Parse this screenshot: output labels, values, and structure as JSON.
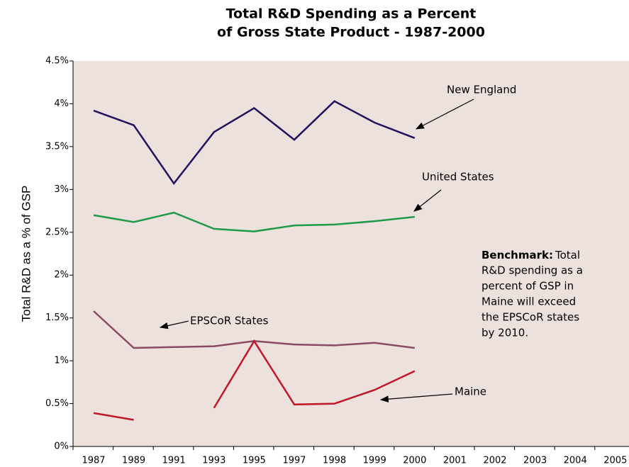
{
  "chart_data": {
    "type": "line",
    "title": [
      "Total R&D Spending as a Percent",
      "of Gross State Product - 1987-2000"
    ],
    "y_label": "Total R&D as a % of GSP",
    "categories": [
      "1987",
      "1989",
      "1991",
      "1993",
      "1995",
      "1997",
      "1998",
      "1999",
      "2000",
      "2001",
      "2002",
      "2003",
      "2004",
      "2005"
    ],
    "series": [
      {
        "name": "New England",
        "color": "#21115e",
        "values": [
          3.92,
          3.75,
          3.07,
          3.67,
          3.95,
          3.58,
          4.03,
          3.78,
          3.6,
          null,
          null,
          null,
          null,
          null
        ]
      },
      {
        "name": "United States",
        "color": "#1e9a4a",
        "values": [
          2.7,
          2.62,
          2.73,
          2.54,
          2.51,
          2.58,
          2.59,
          2.63,
          2.68,
          null,
          null,
          null,
          null,
          null
        ]
      },
      {
        "name": "EPSCoR States",
        "color": "#8b4a63",
        "values": [
          1.58,
          1.15,
          1.16,
          1.17,
          1.23,
          1.19,
          1.18,
          1.21,
          1.15,
          null,
          null,
          null,
          null,
          null
        ]
      },
      {
        "name": "Maine",
        "color": "#c0182b",
        "values": [
          0.39,
          0.31,
          null,
          0.45,
          1.23,
          0.49,
          0.5,
          0.66,
          0.88,
          null,
          null,
          null,
          null,
          null
        ]
      }
    ],
    "ylim": [
      0,
      4.5
    ],
    "yticks": [
      {
        "value": 0,
        "label": "0%"
      },
      {
        "value": 0.5,
        "label": "0.5%"
      },
      {
        "value": 1,
        "label": "1%"
      },
      {
        "value": 1.5,
        "label": "1.5%"
      },
      {
        "value": 2,
        "label": "2%"
      },
      {
        "value": 2.5,
        "label": "2.5%"
      },
      {
        "value": 3,
        "label": "3%"
      },
      {
        "value": 3.5,
        "label": "3.5%"
      },
      {
        "value": 4,
        "label": "4%"
      },
      {
        "value": 4.5,
        "label": "4.5%"
      }
    ],
    "benchmark": {
      "label": "Benchmark:",
      "lines": [
        "Total",
        "R&D spending as a",
        "percent of GSP in",
        "Maine will exceed",
        "the EPSCoR states",
        "by 2010."
      ]
    }
  }
}
